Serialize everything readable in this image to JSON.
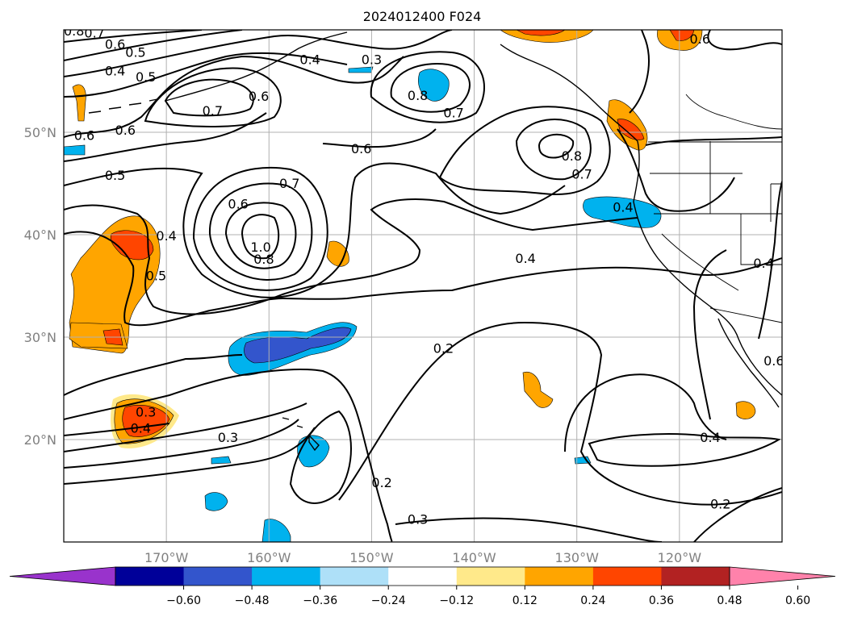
{
  "title": "2024012400 F024",
  "map": {
    "lat_range": [
      10,
      60
    ],
    "lon_range": [
      -180,
      -110
    ],
    "lat_ticks": [
      "50°N",
      "40°N",
      "30°N",
      "20°N"
    ],
    "lon_ticks": [
      "170°W",
      "160°W",
      "150°W",
      "140°W",
      "130°W",
      "120°W"
    ],
    "grid": true
  },
  "colorbar": {
    "ticks": [
      "−0.60",
      "−0.48",
      "−0.36",
      "−0.24",
      "−0.12",
      "0.12",
      "0.24",
      "0.36",
      "0.48",
      "0.60"
    ],
    "colors": [
      "#9933cc",
      "#000099",
      "#3355cc",
      "#00b2ee",
      "#aee0f8",
      "#ffffff",
      "#ffe98a",
      "#ffa500",
      "#ff4500",
      "#b22222",
      "#ff82ab"
    ],
    "extend": "both"
  },
  "contour_labels": [
    {
      "text": "0.8",
      "lon": -179.0,
      "lat": 59.7
    },
    {
      "text": "0.7",
      "lon": -177.0,
      "lat": 59.5
    },
    {
      "text": "0.6",
      "lon": -175.0,
      "lat": 58.4
    },
    {
      "text": "0.5",
      "lon": -173.0,
      "lat": 57.6
    },
    {
      "text": "0.4",
      "lon": -175.0,
      "lat": 55.8
    },
    {
      "text": "0.5",
      "lon": -172.0,
      "lat": 55.2
    },
    {
      "text": "0.7",
      "lon": -165.5,
      "lat": 51.9
    },
    {
      "text": "0.6",
      "lon": -161.0,
      "lat": 53.3
    },
    {
      "text": "0.4",
      "lon": -156.0,
      "lat": 56.9
    },
    {
      "text": "0.3",
      "lon": -150.0,
      "lat": 56.9
    },
    {
      "text": "0.6",
      "lon": -178.0,
      "lat": 49.5
    },
    {
      "text": "0.6",
      "lon": -174.0,
      "lat": 50.0
    },
    {
      "text": "0.5",
      "lon": -175.0,
      "lat": 45.6
    },
    {
      "text": "0.6",
      "lon": -151.0,
      "lat": 48.2
    },
    {
      "text": "0.8",
      "lon": -145.5,
      "lat": 53.4
    },
    {
      "text": "0.7",
      "lon": -142.0,
      "lat": 51.7
    },
    {
      "text": "0.8",
      "lon": -130.5,
      "lat": 47.5
    },
    {
      "text": "0.7",
      "lon": -129.5,
      "lat": 45.7
    },
    {
      "text": "0.4",
      "lon": -125.5,
      "lat": 42.5
    },
    {
      "text": "0.6",
      "lon": -118.0,
      "lat": 58.9
    },
    {
      "text": "0.7",
      "lon": -158.0,
      "lat": 44.8
    },
    {
      "text": "0.6",
      "lon": -163.0,
      "lat": 42.8
    },
    {
      "text": "1.0",
      "lon": -160.8,
      "lat": 38.6
    },
    {
      "text": "0.8",
      "lon": -160.5,
      "lat": 37.4
    },
    {
      "text": "0.4",
      "lon": -170.0,
      "lat": 39.7
    },
    {
      "text": "0.5",
      "lon": -171.0,
      "lat": 35.8
    },
    {
      "text": "0.4",
      "lon": -135.0,
      "lat": 37.5
    },
    {
      "text": "0.4",
      "lon": -111.8,
      "lat": 37.0
    },
    {
      "text": "0.2",
      "lon": -143.0,
      "lat": 28.7
    },
    {
      "text": "0.6",
      "lon": -110.8,
      "lat": 27.5
    },
    {
      "text": "0.3",
      "lon": -172.0,
      "lat": 22.5
    },
    {
      "text": "0.4",
      "lon": -172.5,
      "lat": 20.9
    },
    {
      "text": "0.3",
      "lon": -164.0,
      "lat": 20.0
    },
    {
      "text": "0.4",
      "lon": -117.0,
      "lat": 20.0
    },
    {
      "text": "0.2",
      "lon": -149.0,
      "lat": 15.6
    },
    {
      "text": "0.3",
      "lon": -145.5,
      "lat": 12.0
    },
    {
      "text": "0.2",
      "lon": -116.0,
      "lat": 13.5
    }
  ]
}
